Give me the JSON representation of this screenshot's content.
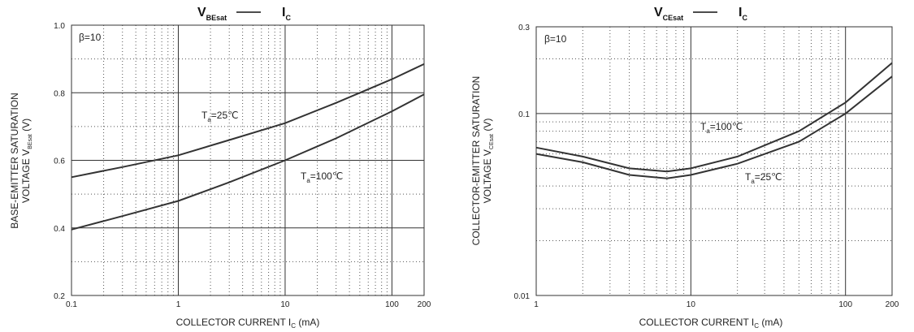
{
  "chart_data": [
    {
      "type": "line",
      "title": "V",
      "title_sub": "BEsat",
      "title_tail": "I",
      "title_tail_sub": "C",
      "annotation": "β=10",
      "xscale": "log",
      "xlim": [
        0.1,
        200
      ],
      "ylim": [
        0.2,
        1.0
      ],
      "xticks": [
        0.1,
        1,
        10,
        100,
        200
      ],
      "xtick_labels": [
        "0.1",
        "1",
        "10",
        "100",
        "200"
      ],
      "yticks": [
        0.2,
        0.4,
        0.6,
        0.8,
        1.0
      ],
      "ytick_labels": [
        "0.2",
        "0.4",
        "0.6",
        "0.8",
        "1.0"
      ],
      "xlabel": "COLLECTOR CURRENT I",
      "xlabel_sub": "C",
      "xlabel_tail": " (mA)",
      "ylabel_line1": "BASE-EMITTER SATURATION",
      "ylabel_line2": "VOLTAGE",
      "ylabel_sym": "V",
      "ylabel_sym_sub": "BEsat",
      "ylabel_unit": "(V)",
      "series": [
        {
          "name": "Ta=25℃",
          "label_main": "T",
          "label_sub": "a",
          "label_tail": "=25℃",
          "x": [
            0.1,
            0.3,
            1,
            3,
            10,
            30,
            100,
            200
          ],
          "y": [
            0.55,
            0.58,
            0.615,
            0.66,
            0.71,
            0.77,
            0.84,
            0.885
          ]
        },
        {
          "name": "Ta=100℃",
          "label_main": "T",
          "label_sub": "a",
          "label_tail": "=100℃",
          "x": [
            0.1,
            0.3,
            1,
            3,
            10,
            30,
            100,
            200
          ],
          "y": [
            0.395,
            0.435,
            0.48,
            0.535,
            0.6,
            0.665,
            0.745,
            0.795
          ]
        }
      ],
      "grid": true
    },
    {
      "type": "line",
      "title": "V",
      "title_sub": "CEsat",
      "title_tail": "I",
      "title_tail_sub": "C",
      "annotation": "β=10",
      "xscale": "log",
      "yscale": "log",
      "xlim": [
        1,
        200
      ],
      "ylim": [
        0.01,
        0.3
      ],
      "xticks": [
        1,
        10,
        100,
        200
      ],
      "xtick_labels": [
        "1",
        "10",
        "100",
        "200"
      ],
      "yticks": [
        0.01,
        0.1,
        0.3
      ],
      "ytick_labels": [
        "0.01",
        "0.1",
        "0.3"
      ],
      "xlabel": "COLLECTOR CURRENT I",
      "xlabel_sub": "C",
      "xlabel_tail": " (mA)",
      "ylabel_line1": "COLLECTOR-EMITTER SATURATION",
      "ylabel_line2": "VOLTAGE",
      "ylabel_sym": "V",
      "ylabel_sym_sub": "CEsat",
      "ylabel_unit": "(V)",
      "series": [
        {
          "name": "Ta=100℃",
          "label_main": "T",
          "label_sub": "a",
          "label_tail": "=100℃",
          "x": [
            1,
            2,
            4,
            7,
            10,
            20,
            50,
            100,
            200
          ],
          "y": [
            0.065,
            0.058,
            0.05,
            0.048,
            0.05,
            0.058,
            0.08,
            0.115,
            0.19
          ]
        },
        {
          "name": "Ta=25℃",
          "label_main": "T",
          "label_sub": "a",
          "label_tail": "=25℃",
          "x": [
            1,
            2,
            4,
            7,
            10,
            20,
            50,
            100,
            200
          ],
          "y": [
            0.06,
            0.054,
            0.046,
            0.044,
            0.046,
            0.053,
            0.07,
            0.1,
            0.16
          ]
        }
      ],
      "grid": true
    }
  ]
}
